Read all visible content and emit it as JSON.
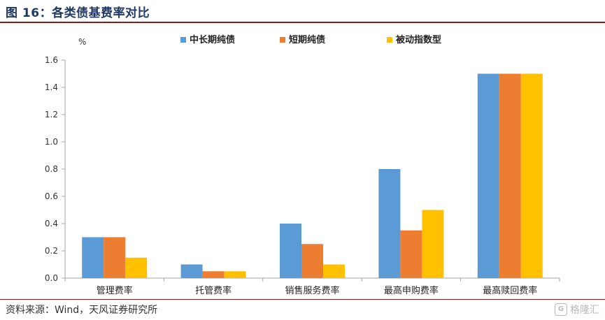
{
  "header": {
    "title": "图 16：各类债基费率对比"
  },
  "footer": {
    "source": "资料来源：Wind，天风证券研究所",
    "watermark": "格隆汇",
    "watermark_logo": "G"
  },
  "chart_data": {
    "type": "bar",
    "categories": [
      "管理费率",
      "托管费率",
      "销售服务费率",
      "最高申购费率",
      "最高赎回费率"
    ],
    "series": [
      {
        "name": "中长期纯债",
        "color": "#5b9bd5",
        "values": [
          0.3,
          0.1,
          0.4,
          0.8,
          1.5
        ]
      },
      {
        "name": "短期纯债",
        "color": "#ed7d31",
        "values": [
          0.3,
          0.05,
          0.25,
          0.35,
          1.5
        ]
      },
      {
        "name": "被动指数型",
        "color": "#ffc000",
        "values": [
          0.15,
          0.05,
          0.1,
          0.5,
          1.5
        ]
      }
    ],
    "ylabel": "%",
    "ylim": [
      0,
      1.6
    ],
    "yticks": [
      "0.0",
      "0.2",
      "0.4",
      "0.6",
      "0.8",
      "1.0",
      "1.2",
      "1.4",
      "1.6"
    ],
    "grid": false,
    "legend_position": "top"
  }
}
